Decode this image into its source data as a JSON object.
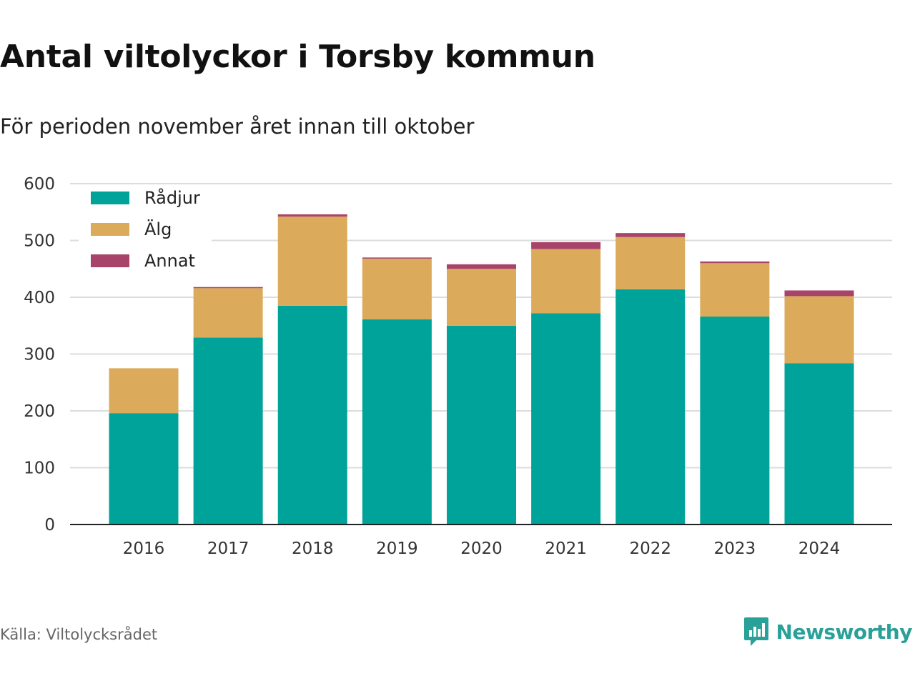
{
  "header": {
    "title": "Antal viltolyckor i Torsby kommun",
    "subtitle": "För perioden november året innan till oktober"
  },
  "footer": {
    "source": "Källa: Viltolycksrådet",
    "brand": "Newsworthy",
    "brand_icon": "newsworthy-logo-icon"
  },
  "colors": {
    "radjur": "#00a39a",
    "alg": "#dbaa5a",
    "annat": "#a8436a",
    "grid": "#dcdcdc",
    "axis": "#222222",
    "brand": "#2aa198"
  },
  "chart_data": {
    "type": "bar",
    "stacked": true,
    "categories": [
      "2016",
      "2017",
      "2018",
      "2019",
      "2020",
      "2021",
      "2022",
      "2023",
      "2024"
    ],
    "series": [
      {
        "name": "Rådjur",
        "color": "#00a39a",
        "values": [
          196,
          329,
          385,
          361,
          350,
          372,
          414,
          366,
          284
        ]
      },
      {
        "name": "Älg",
        "color": "#dbaa5a",
        "values": [
          79,
          87,
          157,
          107,
          100,
          113,
          92,
          94,
          118
        ]
      },
      {
        "name": "Annat",
        "color": "#a8436a",
        "values": [
          0,
          2,
          4,
          2,
          8,
          12,
          7,
          3,
          10
        ]
      }
    ],
    "ylim": [
      0,
      600
    ],
    "yticks": [
      0,
      100,
      200,
      300,
      400,
      500,
      600
    ],
    "grid": true,
    "legend_position": "top-left"
  }
}
